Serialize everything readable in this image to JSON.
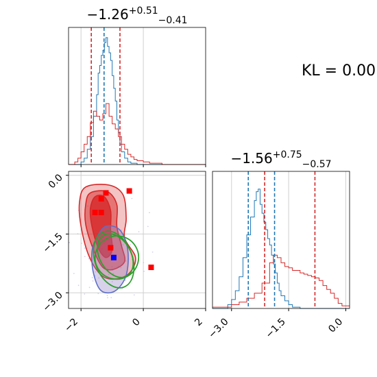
{
  "figure": {
    "kl_label": "KL = 0.00"
  },
  "colors": {
    "blue": "#1f77b4",
    "red": "#d62728",
    "green": "#2ca02c",
    "red_marker": "#ff0000",
    "blue_marker": "#0000ff",
    "grid": "#cfcfcf"
  },
  "chart_data": [
    {
      "type": "histogram",
      "panel": "marginal-x",
      "title_value": "−1.26",
      "title_sup": "+0.51",
      "title_sub": "−0.41",
      "xlim": [
        -2.4,
        2.0
      ],
      "ylim": [
        0,
        1
      ],
      "grid_x": [
        -2,
        0
      ],
      "series": [
        {
          "color": "blue",
          "bins": [
            -2.4,
            -2.0,
            -1.9,
            -1.8,
            -1.7,
            -1.6,
            -1.5,
            -1.45,
            -1.4,
            -1.35,
            -1.3,
            -1.25,
            -1.2,
            -1.15,
            -1.1,
            -1.05,
            -1.0,
            -0.95,
            -0.9,
            -0.85,
            -0.8,
            -0.75,
            -0.7,
            -0.6,
            -0.5,
            -0.4,
            -0.2,
            2.0
          ],
          "heights": [
            0,
            0.02,
            0.05,
            0.12,
            0.22,
            0.38,
            0.55,
            0.72,
            0.78,
            0.86,
            0.9,
            0.96,
            1.0,
            0.93,
            0.88,
            0.82,
            0.7,
            0.6,
            0.5,
            0.35,
            0.25,
            0.16,
            0.1,
            0.05,
            0.02,
            0.01,
            0
          ]
        },
        {
          "color": "red",
          "bins": [
            -2.4,
            -2.2,
            -2.1,
            -2.0,
            -1.9,
            -1.8,
            -1.7,
            -1.6,
            -1.5,
            -1.4,
            -1.3,
            -1.2,
            -1.1,
            -1.0,
            -0.9,
            -0.8,
            -0.7,
            -0.6,
            -0.5,
            -0.4,
            -0.3,
            -0.2,
            0.0,
            0.2,
            0.6,
            2.0
          ],
          "heights": [
            0,
            0.02,
            0.05,
            0.1,
            0.16,
            0.22,
            0.33,
            0.42,
            0.38,
            0.35,
            0.4,
            0.48,
            0.38,
            0.32,
            0.28,
            0.22,
            0.16,
            0.12,
            0.08,
            0.06,
            0.04,
            0.03,
            0.02,
            0.01,
            0
          ]
        }
      ],
      "quantiles": [
        {
          "color": "red",
          "values": [
            -1.67,
            -0.75
          ]
        },
        {
          "color": "blue",
          "values": [
            -1.26
          ]
        }
      ]
    },
    {
      "type": "histogram",
      "panel": "marginal-y",
      "title_value": "−1.56",
      "title_sup": "+0.75",
      "title_sub": "−0.57",
      "xlim": [
        -3.5,
        0.1
      ],
      "ylim": [
        0,
        1
      ],
      "tick_labels": [
        "−3.0",
        "−1.5",
        "0.0"
      ],
      "ticks": [
        -3.0,
        -1.5,
        0.0
      ],
      "series": [
        {
          "color": "blue",
          "bins": [
            -3.5,
            -3.1,
            -3.0,
            -2.9,
            -2.8,
            -2.7,
            -2.6,
            -2.5,
            -2.4,
            -2.35,
            -2.3,
            -2.25,
            -2.2,
            -2.15,
            -2.1,
            -2.05,
            -2.0,
            -1.95,
            -1.9,
            -1.85,
            -1.8,
            -1.75,
            -1.7,
            -1.6,
            -1.5,
            -1.4,
            -1.2,
            0.1
          ],
          "heights": [
            0,
            0.03,
            0.07,
            0.14,
            0.25,
            0.4,
            0.58,
            0.72,
            0.85,
            0.92,
            0.94,
            0.82,
            0.75,
            0.68,
            0.62,
            0.55,
            0.5,
            0.42,
            0.35,
            0.28,
            0.2,
            0.14,
            0.1,
            0.06,
            0.03,
            0.01,
            0
          ]
        },
        {
          "color": "red",
          "bins": [
            -3.5,
            -3.0,
            -2.8,
            -2.6,
            -2.4,
            -2.2,
            -2.0,
            -1.9,
            -1.8,
            -1.7,
            -1.6,
            -1.5,
            -1.4,
            -1.3,
            -1.2,
            -1.1,
            -1.0,
            -0.9,
            -0.8,
            -0.7,
            -0.6,
            -0.5,
            -0.4,
            -0.3,
            -0.2,
            -0.1,
            0.1
          ],
          "heights": [
            0.01,
            0.03,
            0.05,
            0.08,
            0.12,
            0.2,
            0.36,
            0.42,
            0.4,
            0.36,
            0.33,
            0.32,
            0.3,
            0.3,
            0.28,
            0.27,
            0.26,
            0.25,
            0.24,
            0.22,
            0.18,
            0.15,
            0.12,
            0.08,
            0.04,
            0.02
          ]
        }
      ],
      "quantiles": [
        {
          "color": "blue",
          "values": [
            -2.56,
            -1.87
          ]
        },
        {
          "color": "red",
          "values": [
            -2.13,
            -0.81
          ]
        }
      ]
    },
    {
      "type": "contour",
      "panel": "joint",
      "xlim": [
        -2.4,
        2.0
      ],
      "ylim": [
        -3.4,
        0.1
      ],
      "xticks": [
        -2,
        0,
        2
      ],
      "xtick_labels": [
        "−2",
        "0",
        "2"
      ],
      "yticks": [
        0.0,
        -1.5,
        -3.0
      ],
      "ytick_labels": [
        "0.0",
        "−1.5",
        "−3.0"
      ],
      "red_markers": [
        [
          -1.2,
          -0.45
        ],
        [
          -1.35,
          -0.6
        ],
        [
          -0.45,
          -0.4
        ],
        [
          -1.55,
          -0.95
        ],
        [
          -1.35,
          -0.95
        ],
        [
          -1.05,
          -1.85
        ],
        [
          0.25,
          -2.35
        ]
      ],
      "blue_markers": [
        [
          -0.95,
          -2.1
        ]
      ],
      "red_levels": [
        {
          "fill": 0.28,
          "points": [
            [
              -1.85,
              -0.3
            ],
            [
              -1.1,
              -0.25
            ],
            [
              -0.65,
              -0.5
            ],
            [
              -0.55,
              -1.1
            ],
            [
              -0.6,
              -1.6
            ],
            [
              -0.25,
              -2.1
            ],
            [
              -0.45,
              -2.5
            ],
            [
              -0.9,
              -2.65
            ],
            [
              -1.35,
              -2.55
            ],
            [
              -1.75,
              -2.05
            ],
            [
              -2.0,
              -1.3
            ],
            [
              -2.05,
              -0.7
            ]
          ]
        },
        {
          "fill": 0.5,
          "points": [
            [
              -1.7,
              -0.45
            ],
            [
              -1.15,
              -0.42
            ],
            [
              -0.85,
              -0.75
            ],
            [
              -0.85,
              -1.3
            ],
            [
              -0.7,
              -1.8
            ],
            [
              -0.6,
              -2.2
            ],
            [
              -0.95,
              -2.4
            ],
            [
              -1.3,
              -2.35
            ],
            [
              -1.6,
              -1.9
            ],
            [
              -1.85,
              -1.25
            ],
            [
              -1.85,
              -0.75
            ]
          ]
        },
        {
          "fill": 0.8,
          "points": [
            [
              -1.55,
              -0.55
            ],
            [
              -1.25,
              -0.55
            ],
            [
              -1.05,
              -0.9
            ],
            [
              -1.05,
              -1.4
            ],
            [
              -1.0,
              -1.9
            ],
            [
              -1.2,
              -2.1
            ],
            [
              -1.45,
              -1.85
            ],
            [
              -1.65,
              -1.3
            ],
            [
              -1.7,
              -0.85
            ]
          ]
        }
      ],
      "blue_level": {
        "points": [
          [
            -1.5,
            -1.6
          ],
          [
            -1.2,
            -1.3
          ],
          [
            -0.75,
            -1.4
          ],
          [
            -0.5,
            -1.9
          ],
          [
            -0.55,
            -2.55
          ],
          [
            -0.9,
            -2.95
          ],
          [
            -1.35,
            -2.95
          ],
          [
            -1.6,
            -2.5
          ],
          [
            -1.65,
            -1.95
          ]
        ]
      },
      "green_ellipses": [
        {
          "cx": -0.85,
          "cy": -2.1,
          "rx": 0.7,
          "ry": 0.55,
          "angle": -30
        },
        {
          "cx": -0.95,
          "cy": -2.15,
          "rx": 0.6,
          "ry": 0.75,
          "angle": -20
        },
        {
          "cx": -0.9,
          "cy": -2.05,
          "rx": 0.5,
          "ry": 0.6,
          "angle": -30
        }
      ]
    }
  ]
}
